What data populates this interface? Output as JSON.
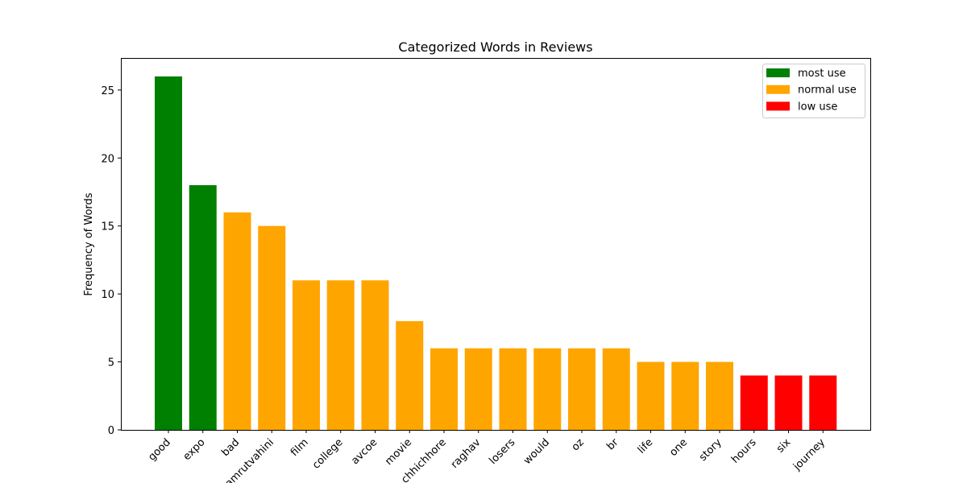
{
  "chart_data": {
    "type": "bar",
    "title": "Categorized Words in Reviews",
    "xlabel": "",
    "ylabel": "Frequency of Words",
    "ylim": [
      0,
      27.3
    ],
    "yticks": [
      0,
      5,
      10,
      15,
      20,
      25
    ],
    "categories": [
      "good",
      "expo",
      "bad",
      "amrutvahini",
      "film",
      "college",
      "avcoe",
      "movie",
      "chhichhore",
      "raghav",
      "losers",
      "would",
      "oz",
      "br",
      "life",
      "one",
      "story",
      "hours",
      "six",
      "journey"
    ],
    "values": [
      26,
      18,
      16,
      15,
      11,
      11,
      11,
      8,
      6,
      6,
      6,
      6,
      6,
      6,
      5,
      5,
      5,
      4,
      4,
      4
    ],
    "bar_groups": [
      "most use",
      "most use",
      "normal use",
      "normal use",
      "normal use",
      "normal use",
      "normal use",
      "normal use",
      "normal use",
      "normal use",
      "normal use",
      "normal use",
      "normal use",
      "normal use",
      "normal use",
      "normal use",
      "normal use",
      "low use",
      "low use",
      "low use"
    ],
    "legend": {
      "position": "top-right",
      "entries": [
        {
          "label": "most use",
          "color": "#008000"
        },
        {
          "label": "normal use",
          "color": "#FFA500"
        },
        {
          "label": "low use",
          "color": "#FF0000"
        }
      ]
    },
    "grid": false
  }
}
